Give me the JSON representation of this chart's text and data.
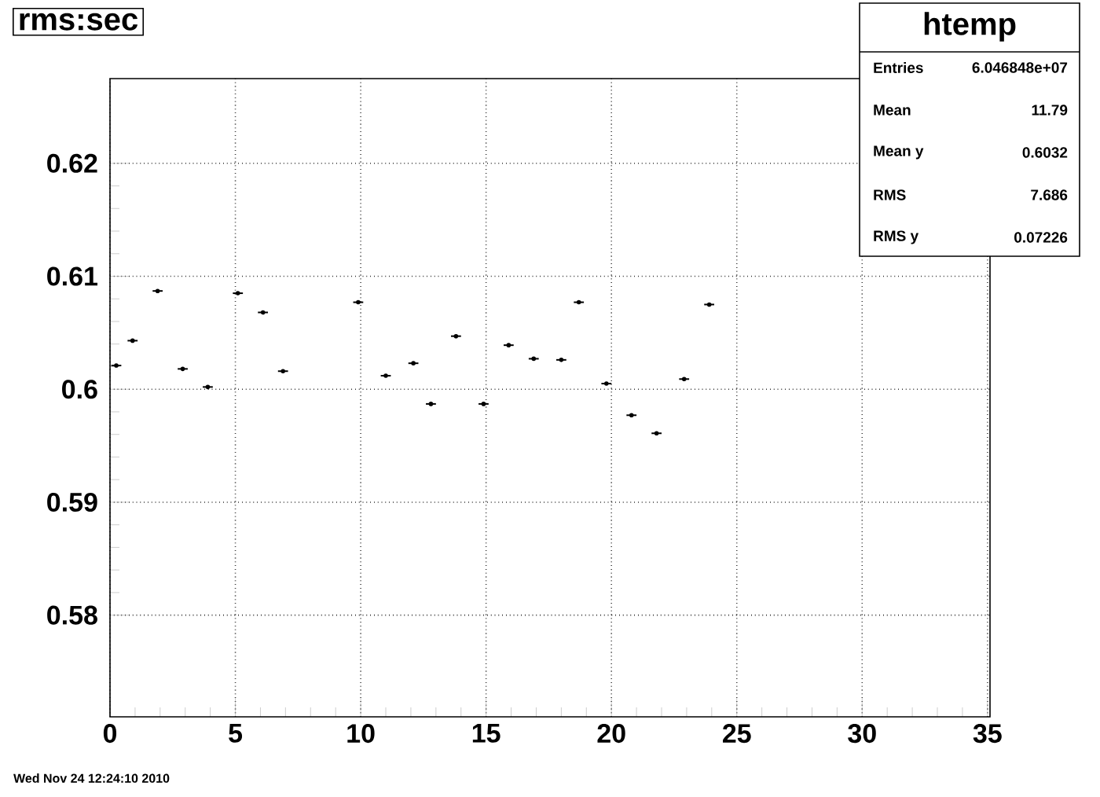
{
  "chart_data": {
    "type": "scatter",
    "title": "rms:sec",
    "subtitle": "htemp",
    "x": [
      0.25,
      0.9,
      1.9,
      2.9,
      3.9,
      5.1,
      6.1,
      6.9,
      9.9,
      11,
      12.1,
      12.8,
      13.8,
      14.9,
      15.9,
      16.9,
      18,
      18.7,
      19.8,
      20.8,
      21.8,
      22.9,
      23.9
    ],
    "values": [
      0.6021,
      0.6043,
      0.6087,
      0.6018,
      0.6002,
      0.6085,
      0.6068,
      0.6016,
      0.6077,
      0.6012,
      0.6023,
      0.5987,
      0.6047,
      0.5987,
      0.6039,
      0.6027,
      0.6026,
      0.6077,
      0.6005,
      0.5977,
      0.5961,
      0.6009,
      0.6075
    ],
    "color": "#000000",
    "marker": "circle",
    "xerrors": [
      0.2,
      0.2,
      0.2,
      0.2,
      0.2,
      0.2,
      0.2,
      0.2,
      0.2,
      0.2,
      0.2,
      0.2,
      0.2,
      0.2,
      0.2,
      0.2,
      0.2,
      0.2,
      0.2,
      0.2,
      0.2,
      0.2,
      0.2
    ],
    "xlim": [
      0,
      35.1
    ],
    "ylim": [
      0.571,
      0.6275
    ],
    "xticks": [
      0,
      5,
      10,
      15,
      20,
      25,
      30,
      35
    ],
    "yticks": [
      0.58,
      0.59,
      0.6,
      0.61,
      0.62
    ],
    "grid": true,
    "annotations": [
      "Entries",
      "6.046848e+07",
      "Mean",
      "11.79",
      "Mean y",
      "0.6032",
      "RMS",
      "7.686",
      "RMS y",
      "0.07226",
      "Wed Nov 24 12:24:10 2010"
    ]
  }
}
